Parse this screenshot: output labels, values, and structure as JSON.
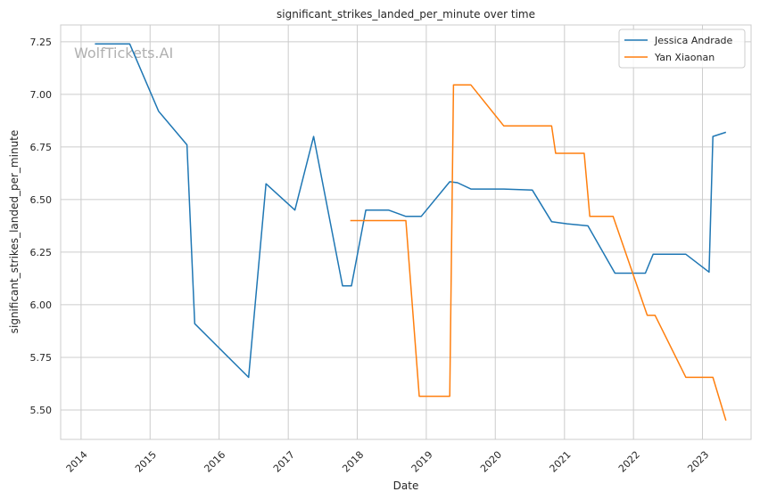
{
  "chart_data": {
    "type": "line",
    "title": "significant_strikes_landed_per_minute over time",
    "xlabel": "Date",
    "ylabel": "significant_strikes_landed_per_minute",
    "watermark": "WolfTickets.AI",
    "xlim": [
      "2013-09-15",
      "2023-09-15"
    ],
    "ylim": [
      5.36,
      7.33
    ],
    "x_ticks": [
      "2014-01-01",
      "2015-01-01",
      "2016-01-01",
      "2017-01-01",
      "2018-01-01",
      "2019-01-01",
      "2020-01-01",
      "2021-01-01",
      "2022-01-01",
      "2023-01-01"
    ],
    "x_tick_labels": [
      "2014",
      "2015",
      "2016",
      "2017",
      "2018",
      "2019",
      "2020",
      "2021",
      "2022",
      "2023"
    ],
    "y_ticks": [
      5.5,
      5.75,
      6.0,
      6.25,
      6.5,
      6.75,
      7.0,
      7.25
    ],
    "y_tick_labels": [
      "5.50",
      "5.75",
      "6.00",
      "6.25",
      "6.50",
      "6.75",
      "7.00",
      "7.25"
    ],
    "grid": true,
    "legend_position": "top-right",
    "series": [
      {
        "name": "Jessica Andrade",
        "color": "#1f77b4",
        "points": [
          [
            "2014-03-15",
            7.24
          ],
          [
            "2014-09-15",
            7.24
          ],
          [
            "2015-02-15",
            6.92
          ],
          [
            "2015-07-15",
            6.76
          ],
          [
            "2015-08-25",
            5.91
          ],
          [
            "2016-06-05",
            5.655
          ],
          [
            "2016-09-05",
            6.575
          ],
          [
            "2017-02-05",
            6.45
          ],
          [
            "2017-05-15",
            6.8
          ],
          [
            "2017-10-15",
            6.09
          ],
          [
            "2017-12-01",
            6.09
          ],
          [
            "2018-02-15",
            6.45
          ],
          [
            "2018-06-15",
            6.45
          ],
          [
            "2018-09-15",
            6.42
          ],
          [
            "2018-12-05",
            6.42
          ],
          [
            "2019-05-05",
            6.585
          ],
          [
            "2019-06-15",
            6.58
          ],
          [
            "2019-08-25",
            6.55
          ],
          [
            "2020-02-15",
            6.55
          ],
          [
            "2020-07-15",
            6.545
          ],
          [
            "2020-10-25",
            6.395
          ],
          [
            "2021-01-15",
            6.385
          ],
          [
            "2021-05-05",
            6.375
          ],
          [
            "2021-09-25",
            6.15
          ],
          [
            "2022-03-05",
            6.15
          ],
          [
            "2022-04-15",
            6.24
          ],
          [
            "2022-10-05",
            6.24
          ],
          [
            "2023-02-05",
            6.155
          ],
          [
            "2023-02-25",
            6.8
          ],
          [
            "2023-05-05",
            6.82
          ]
        ]
      },
      {
        "name": "Yan Xiaonan",
        "color": "#ff7f0e",
        "points": [
          [
            "2017-11-25",
            6.4
          ],
          [
            "2018-09-15",
            6.4
          ],
          [
            "2018-11-25",
            5.565
          ],
          [
            "2019-05-05",
            5.565
          ],
          [
            "2019-05-25",
            7.045
          ],
          [
            "2019-08-25",
            7.045
          ],
          [
            "2020-02-15",
            6.85
          ],
          [
            "2020-10-25",
            6.85
          ],
          [
            "2020-11-15",
            6.72
          ],
          [
            "2021-04-15",
            6.72
          ],
          [
            "2021-05-15",
            6.42
          ],
          [
            "2021-09-15",
            6.42
          ],
          [
            "2022-03-15",
            5.95
          ],
          [
            "2022-04-25",
            5.95
          ],
          [
            "2022-10-05",
            5.655
          ],
          [
            "2023-02-25",
            5.655
          ],
          [
            "2023-05-05",
            5.45
          ]
        ]
      }
    ]
  }
}
